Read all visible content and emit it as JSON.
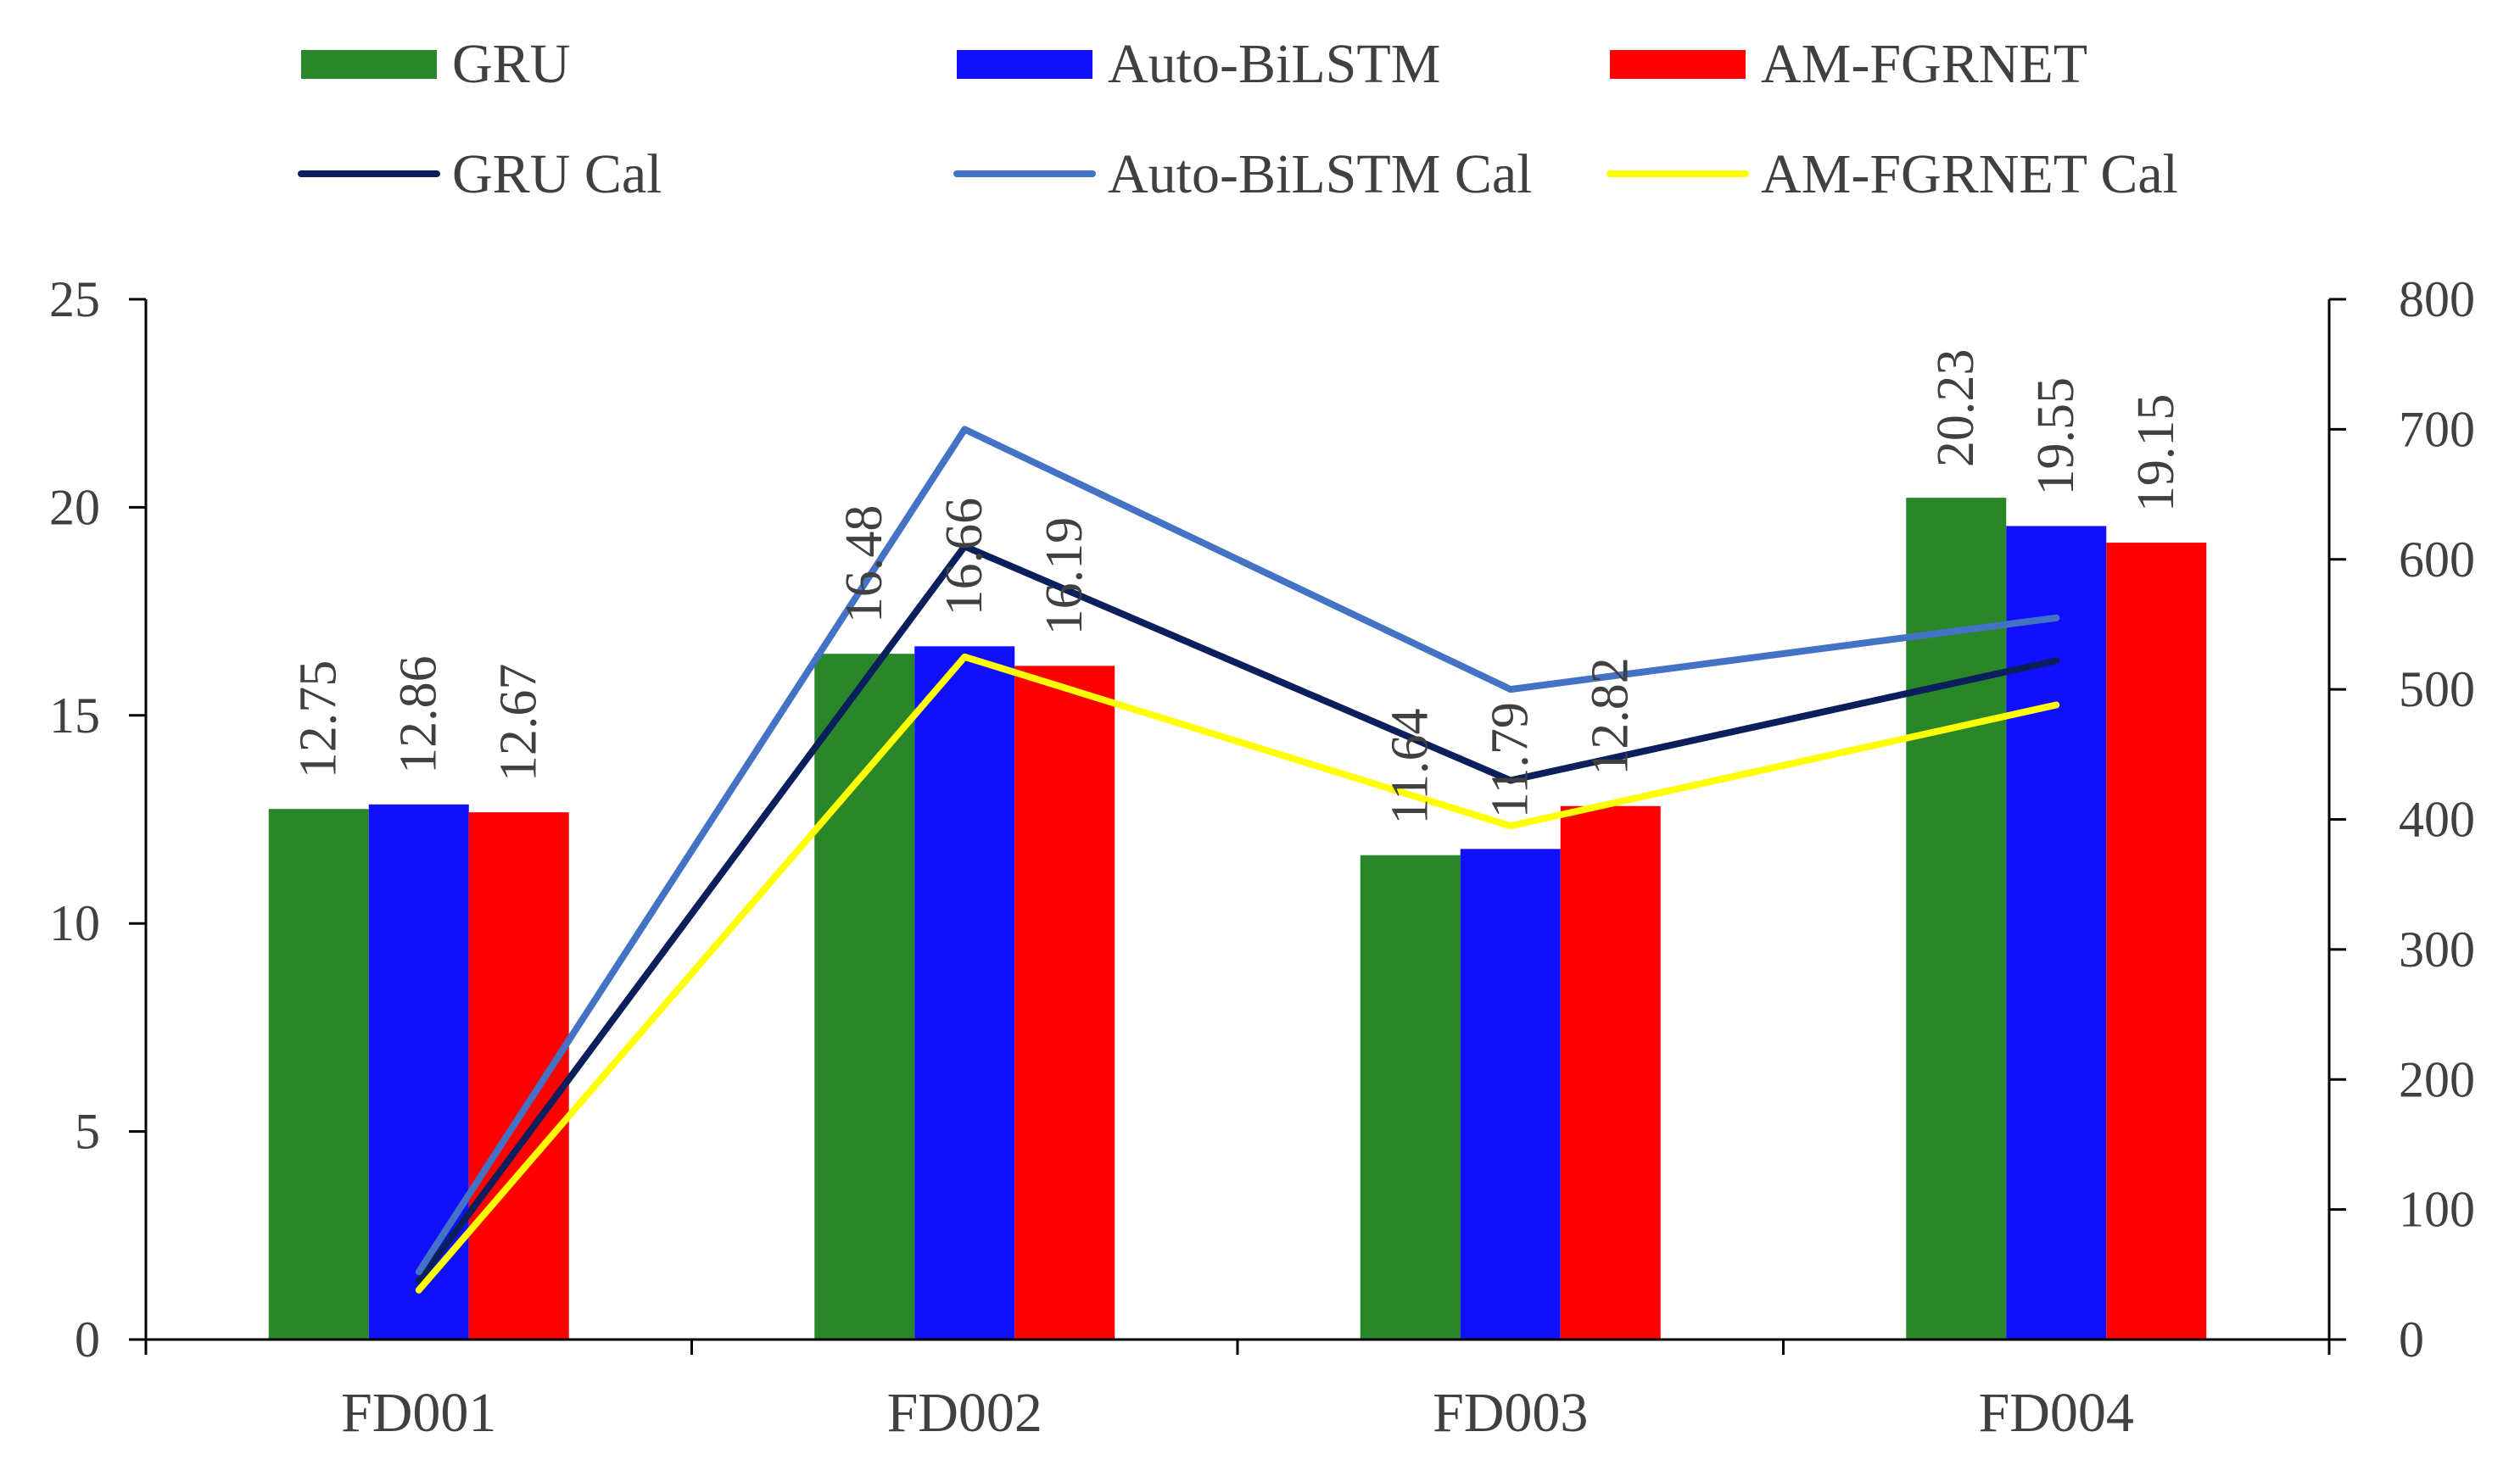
{
  "chart_data": {
    "type": "bar",
    "categories": [
      "FD001",
      "FD002",
      "FD003",
      "FD004"
    ],
    "series": [
      {
        "name": "GRU",
        "kind": "bar",
        "axis": "left",
        "color": "#2a8729",
        "values": [
          12.75,
          16.48,
          11.64,
          20.23
        ],
        "labels": [
          "12.75",
          "16.48",
          "11.64",
          "20.23"
        ]
      },
      {
        "name": "Auto-BiLSTM",
        "kind": "bar",
        "axis": "left",
        "color": "#1010ff",
        "values": [
          12.86,
          16.66,
          11.79,
          19.55
        ],
        "labels": [
          "12.86",
          "16.66",
          "11.79",
          "19.55"
        ]
      },
      {
        "name": "AM-FGRNET",
        "kind": "bar",
        "axis": "left",
        "color": "#ff0000",
        "values": [
          12.67,
          16.19,
          12.82,
          19.15
        ],
        "labels": [
          "12.67",
          "16.19",
          "12.82",
          "19.15"
        ]
      },
      {
        "name": "GRU Cal",
        "kind": "line",
        "axis": "right",
        "color": "#0b1f5c",
        "values": [
          45,
          610,
          430,
          522
        ]
      },
      {
        "name": "Auto-BiLSTM Cal",
        "kind": "line",
        "axis": "right",
        "color": "#4472c4",
        "values": [
          52,
          700,
          500,
          555
        ]
      },
      {
        "name": "AM-FGRNET Cal",
        "kind": "line",
        "axis": "right",
        "color": "#ffff00",
        "values": [
          38,
          525,
          395,
          488
        ]
      }
    ],
    "y_left": {
      "min": 0,
      "max": 25,
      "ticks": [
        "0",
        "5",
        "10",
        "15",
        "20",
        "25"
      ]
    },
    "y_right": {
      "min": 0,
      "max": 800,
      "ticks": [
        "0",
        "100",
        "200",
        "300",
        "400",
        "500",
        "600",
        "700",
        "800"
      ]
    },
    "legend_position": "top",
    "grid": false
  }
}
